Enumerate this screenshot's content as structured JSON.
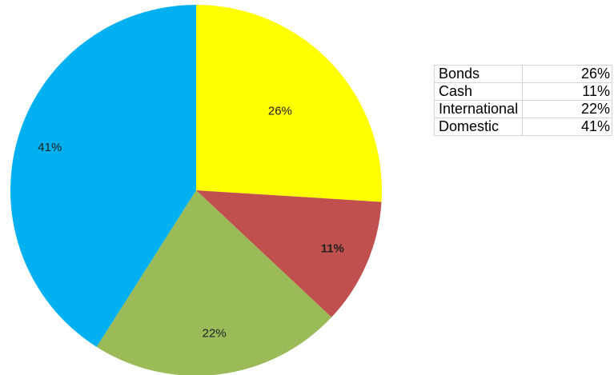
{
  "chart_data": {
    "type": "pie",
    "categories": [
      "Bonds",
      "Cash",
      "International",
      "Domestic"
    ],
    "values": [
      26,
      11,
      22,
      41
    ],
    "labels": [
      "26%",
      "11%",
      "22%",
      "41%"
    ],
    "colors": [
      "#FFFF00",
      "#C0504D",
      "#9BBB59",
      "#00B0F0"
    ],
    "title": "",
    "legend": "none"
  },
  "table": {
    "rows": [
      {
        "category": "Bonds",
        "value": "26%"
      },
      {
        "category": "Cash",
        "value": "11%"
      },
      {
        "category": "International",
        "value": "22%"
      },
      {
        "category": "Domestic",
        "value": "41%"
      }
    ]
  }
}
